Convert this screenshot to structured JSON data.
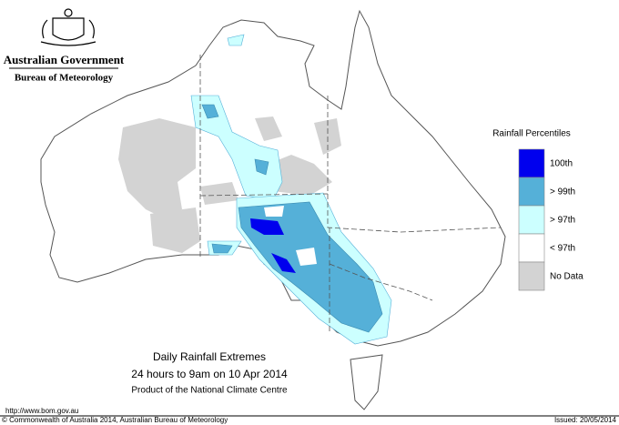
{
  "header": {
    "government": "Australian Government",
    "agency": "Bureau of Meteorology"
  },
  "legend": {
    "title": "Rainfall Percentiles",
    "items": [
      {
        "label": "100th",
        "color": "#0000ee"
      },
      {
        "label": "> 99th",
        "color": "#55b0d8"
      },
      {
        "label": "> 97th",
        "color": "#ccffff"
      },
      {
        "label": "< 97th",
        "color": "#ffffff"
      },
      {
        "label": "No Data",
        "color": "#d3d3d3"
      }
    ]
  },
  "title": {
    "line1": "Daily Rainfall Extremes",
    "line2": "24 hours to 9am on 10 Apr 2014",
    "line3": "Product of the National Climate Centre"
  },
  "footer": {
    "url": "http://www.bom.gov.au",
    "copyright": "© Commonwealth of Australia 2014, Australian Bureau of Meteorology",
    "issued": "Issued: 20/05/2014"
  }
}
